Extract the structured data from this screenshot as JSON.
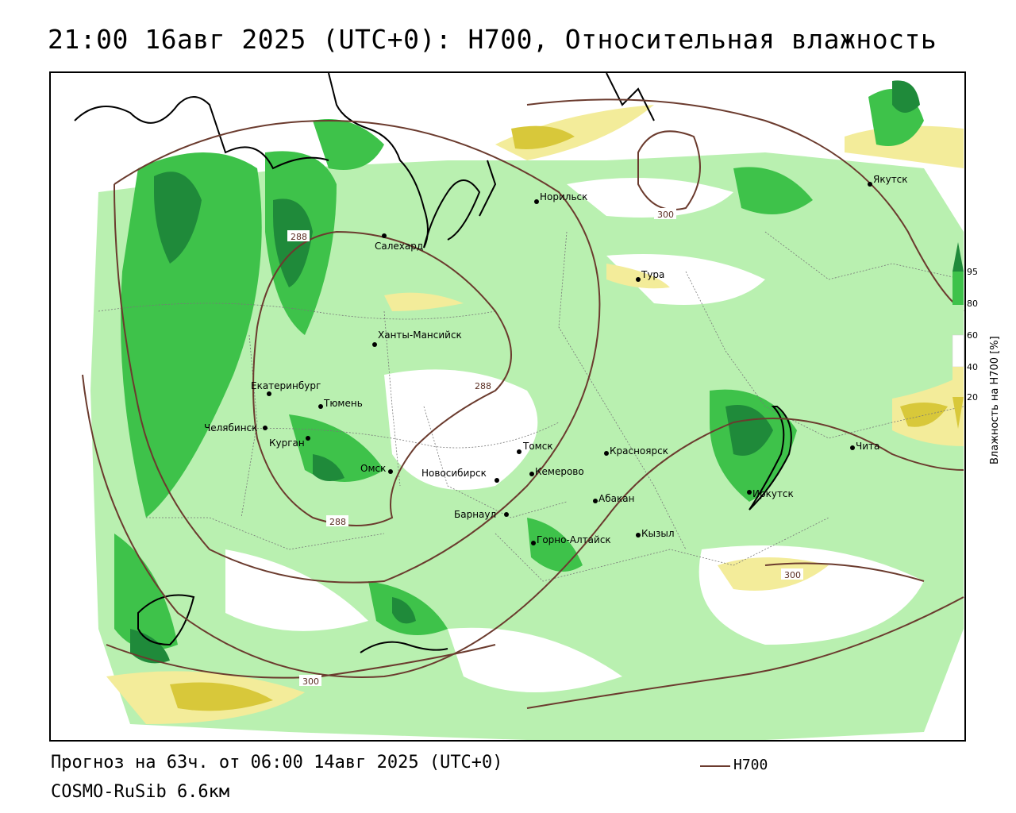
{
  "title": "21:00 16авг 2025 (UTC+0): H700, Относительная влажность",
  "footer": {
    "forecast": "Прогноз на 63ч. от 06:00 14авг 2025 (UTC+0)",
    "model": "COSMO-RuSib 6.6км"
  },
  "legend": {
    "line_label": "H700",
    "line_color": "#6b3b2e"
  },
  "colorbar": {
    "title": "Влажность на H700 [%]",
    "ticks": [
      "95",
      "80",
      "60",
      "40",
      "20"
    ],
    "colors": {
      "c95": "#1f8a3a",
      "c80": "#3ec24a",
      "c60": "#b9f0b0",
      "c40": "#ffffff",
      "c20": "#f3ec9a",
      "c10": "#d8c83a"
    }
  },
  "cities": [
    {
      "name": "Норильск"
    },
    {
      "name": "Якутск"
    },
    {
      "name": "Салехард"
    },
    {
      "name": "Тура"
    },
    {
      "name": "Ханты-Мансийск"
    },
    {
      "name": "Екатеринбург"
    },
    {
      "name": "Тюмень"
    },
    {
      "name": "Челябинск"
    },
    {
      "name": "Курган"
    },
    {
      "name": "Омск"
    },
    {
      "name": "Новосибирск"
    },
    {
      "name": "Томск"
    },
    {
      "name": "Кемерово"
    },
    {
      "name": "Красноярск"
    },
    {
      "name": "Барнаул"
    },
    {
      "name": "Абакан"
    },
    {
      "name": "Иркутск"
    },
    {
      "name": "Чита"
    },
    {
      "name": "Горно-Алтайск"
    },
    {
      "name": "Кызыл"
    }
  ],
  "contour_labels": [
    "288",
    "288",
    "288",
    "300",
    "300",
    "300"
  ]
}
